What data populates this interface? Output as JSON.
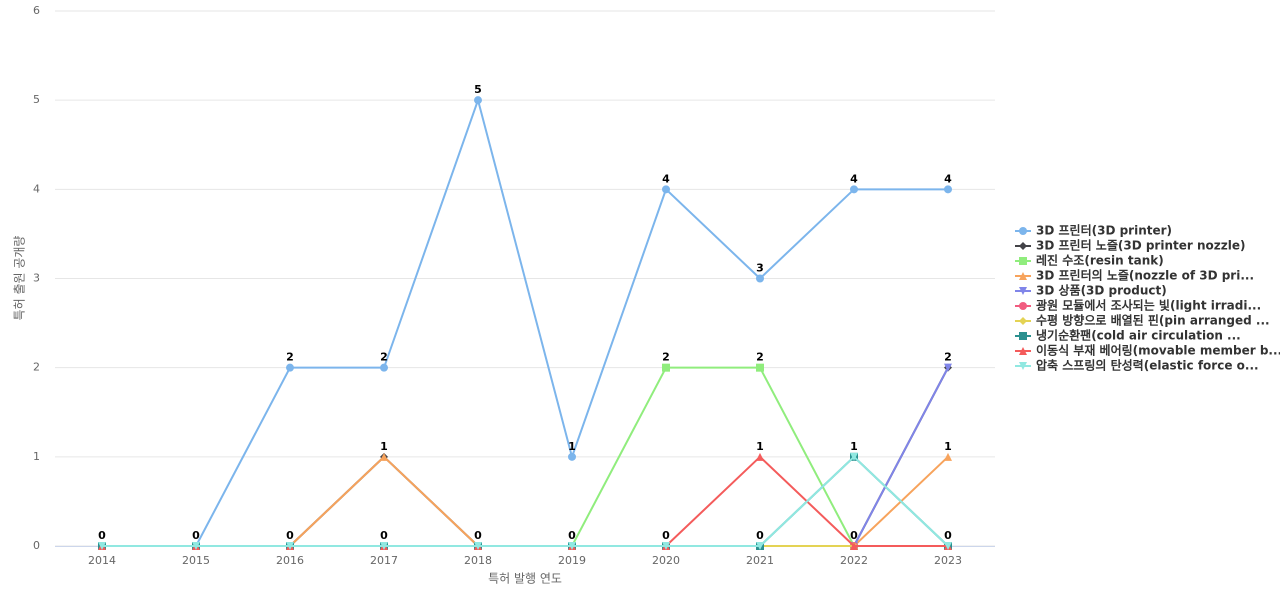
{
  "chart_data": {
    "type": "line",
    "x_label": "특허 발행 연도",
    "y_label": "특허 출원 공개량",
    "categories": [
      "2014",
      "2015",
      "2016",
      "2017",
      "2018",
      "2019",
      "2020",
      "2021",
      "2022",
      "2023"
    ],
    "ylim": [
      0,
      6
    ],
    "yticks": [
      0,
      1,
      2,
      3,
      4,
      5,
      6
    ],
    "grid": true,
    "legend": "right",
    "series": [
      {
        "name": "3D 프린터(3D printer)",
        "color": "#7cb5ec",
        "values": [
          0,
          0,
          2,
          2,
          5,
          1,
          4,
          3,
          4,
          4
        ]
      },
      {
        "name": "3D 프린터 노즐(3D printer nozzle)",
        "color": "#434348",
        "values": [
          0,
          0,
          0,
          1,
          0,
          0,
          0,
          0,
          0,
          2
        ]
      },
      {
        "name": "레진 수조(resin tank)",
        "color": "#90ed7d",
        "values": [
          0,
          0,
          0,
          0,
          0,
          0,
          2,
          2,
          0,
          0
        ]
      },
      {
        "name": "3D 프린터의 노즐(nozzle of 3D pri...",
        "color": "#f7a35c",
        "values": [
          0,
          0,
          0,
          1,
          0,
          0,
          0,
          0,
          0,
          1
        ]
      },
      {
        "name": "3D 상품(3D product)",
        "color": "#8085e9",
        "values": [
          0,
          0,
          0,
          0,
          0,
          0,
          0,
          0,
          0,
          2
        ]
      },
      {
        "name": "광원 모듈에서 조사되는 빛(light irradi...",
        "color": "#f15c80",
        "values": [
          0,
          0,
          0,
          0,
          0,
          0,
          0,
          0,
          0,
          0
        ]
      },
      {
        "name": "수평 방향으로 배열된 핀(pin arranged ...",
        "color": "#e4d354",
        "values": [
          0,
          0,
          0,
          0,
          0,
          0,
          0,
          0,
          0,
          0
        ]
      },
      {
        "name": "냉기순환팬(cold air circulation ...",
        "color": "#2b908f",
        "values": [
          0,
          0,
          0,
          0,
          0,
          0,
          0,
          0,
          1,
          0
        ]
      },
      {
        "name": "이동식 부재 베어링(movable member b...",
        "color": "#f45b5b",
        "values": [
          0,
          0,
          0,
          0,
          0,
          0,
          0,
          1,
          0,
          0
        ]
      },
      {
        "name": "압축 스프링의 탄성력(elastic force o...",
        "color": "#91e8e1",
        "values": [
          0,
          0,
          0,
          0,
          0,
          0,
          0,
          0,
          1,
          0
        ]
      }
    ]
  }
}
